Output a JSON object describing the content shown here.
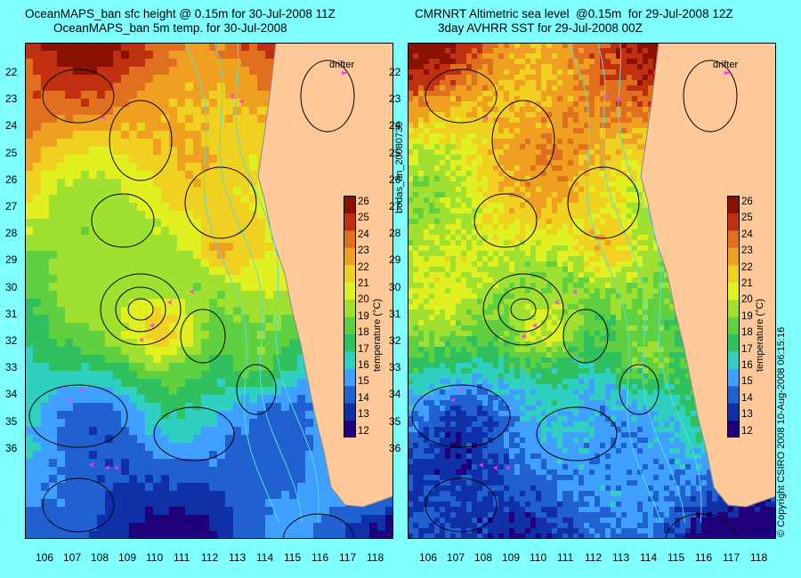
{
  "left_panel": {
    "title_line1": "OceanMAPS_ban sfc height @ 0.15m for 30-Jul-2008 11Z",
    "title_line2": "OceanMAPS_ban 5m temp. for 30-Jul-2008",
    "drifter_label": "drifter",
    "colorbar_title": "temperature (°C)",
    "colorbar_ticks": [
      "26",
      "25",
      "24",
      "23",
      "22",
      "21",
      "20",
      "19",
      "18",
      "17",
      "16",
      "15",
      "14",
      "13",
      "12"
    ]
  },
  "right_panel": {
    "title_line1": "CMRNRT Altimetric sea level  @0.15m  for 29-Jul-2008 12Z",
    "title_line2": "3day AVHRR SST for 29-Jul-2008 00Z",
    "drifter_label": "drifter",
    "colorbar_title": "temperature (°C)",
    "colorbar_ticks": [
      "26",
      "25",
      "24",
      "23",
      "22",
      "21",
      "20",
      "19",
      "18",
      "17",
      "16",
      "15",
      "14",
      "13",
      "12"
    ]
  },
  "lat_ticks": [
    "22",
    "23",
    "24",
    "25",
    "26",
    "27",
    "28",
    "29",
    "30",
    "31",
    "32",
    "33",
    "34",
    "35",
    "36"
  ],
  "lon_ticks": [
    "106",
    "107",
    "108",
    "109",
    "110",
    "111",
    "112",
    "113",
    "114",
    "115",
    "116",
    "117",
    "118"
  ],
  "middle_label": "bodas_an_20080730",
  "copyright": "© Copyright CSIRO 2008   10-Aug-2008 06:15:16",
  "colors": {
    "background": "#7fffff",
    "land": "#fdc999",
    "coast_gray": "#b0a8a0",
    "drifter": "#ff33ff",
    "contour": "#000000",
    "bathymetry": "#55dddd"
  },
  "colormap": [
    "#20007a",
    "#1030a8",
    "#2060d0",
    "#40a0ff",
    "#30d0c0",
    "#30c060",
    "#60d040",
    "#a0e030",
    "#e0f020",
    "#f0d020",
    "#f0a020",
    "#e07020",
    "#c03010",
    "#8a1000"
  ],
  "temperature_range": [
    12,
    26.5
  ]
}
